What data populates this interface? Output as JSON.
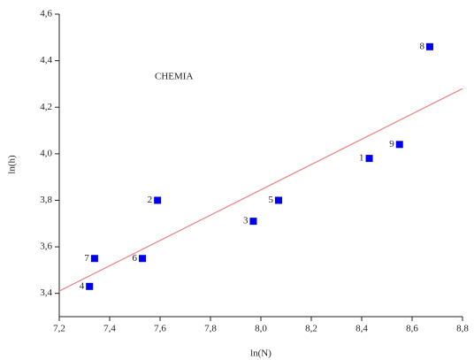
{
  "chart_data": {
    "type": "scatter",
    "annotation": "CHEMIA",
    "x_label": "ln(N)",
    "y_label": "ln(h)",
    "xlim": [
      7.2,
      8.8
    ],
    "xticks": [
      {
        "value": 7.2,
        "label": "7,2"
      },
      {
        "value": 7.4,
        "label": "7,4"
      },
      {
        "value": 7.6,
        "label": "7,6"
      },
      {
        "value": 7.8,
        "label": "7,8"
      },
      {
        "value": 8.0,
        "label": "8,0"
      },
      {
        "value": 8.2,
        "label": "8,2"
      },
      {
        "value": 8.4,
        "label": "8,4"
      },
      {
        "value": 8.6,
        "label": "8,6"
      },
      {
        "value": 8.8,
        "label": "8,8"
      }
    ],
    "ylim": [
      3.3,
      4.6
    ],
    "yticks": [
      {
        "value": 3.4,
        "label": "3,4"
      },
      {
        "value": 3.6,
        "label": "3,6"
      },
      {
        "value": 3.8,
        "label": "3,8"
      },
      {
        "value": 4.0,
        "label": "4,0"
      },
      {
        "value": 4.2,
        "label": "4,2"
      },
      {
        "value": 4.4,
        "label": "4,4"
      },
      {
        "value": 4.6,
        "label": "4,6"
      }
    ],
    "series": [
      {
        "color": "#0000ee",
        "x": [
          7.32,
          7.34,
          7.53,
          7.59,
          7.97,
          8.07,
          8.43,
          8.55,
          8.67
        ],
        "values": [
          3.43,
          3.55,
          3.55,
          3.8,
          3.71,
          3.8,
          3.98,
          4.04,
          4.46
        ],
        "point_labels": [
          "4",
          "7",
          "6",
          "2",
          "3",
          "5",
          "1",
          "9",
          "8"
        ]
      },
      {
        "kind": "fit",
        "color": "#f08080",
        "x": [
          7.2,
          8.8
        ],
        "values": [
          3.41,
          4.28
        ]
      }
    ]
  }
}
